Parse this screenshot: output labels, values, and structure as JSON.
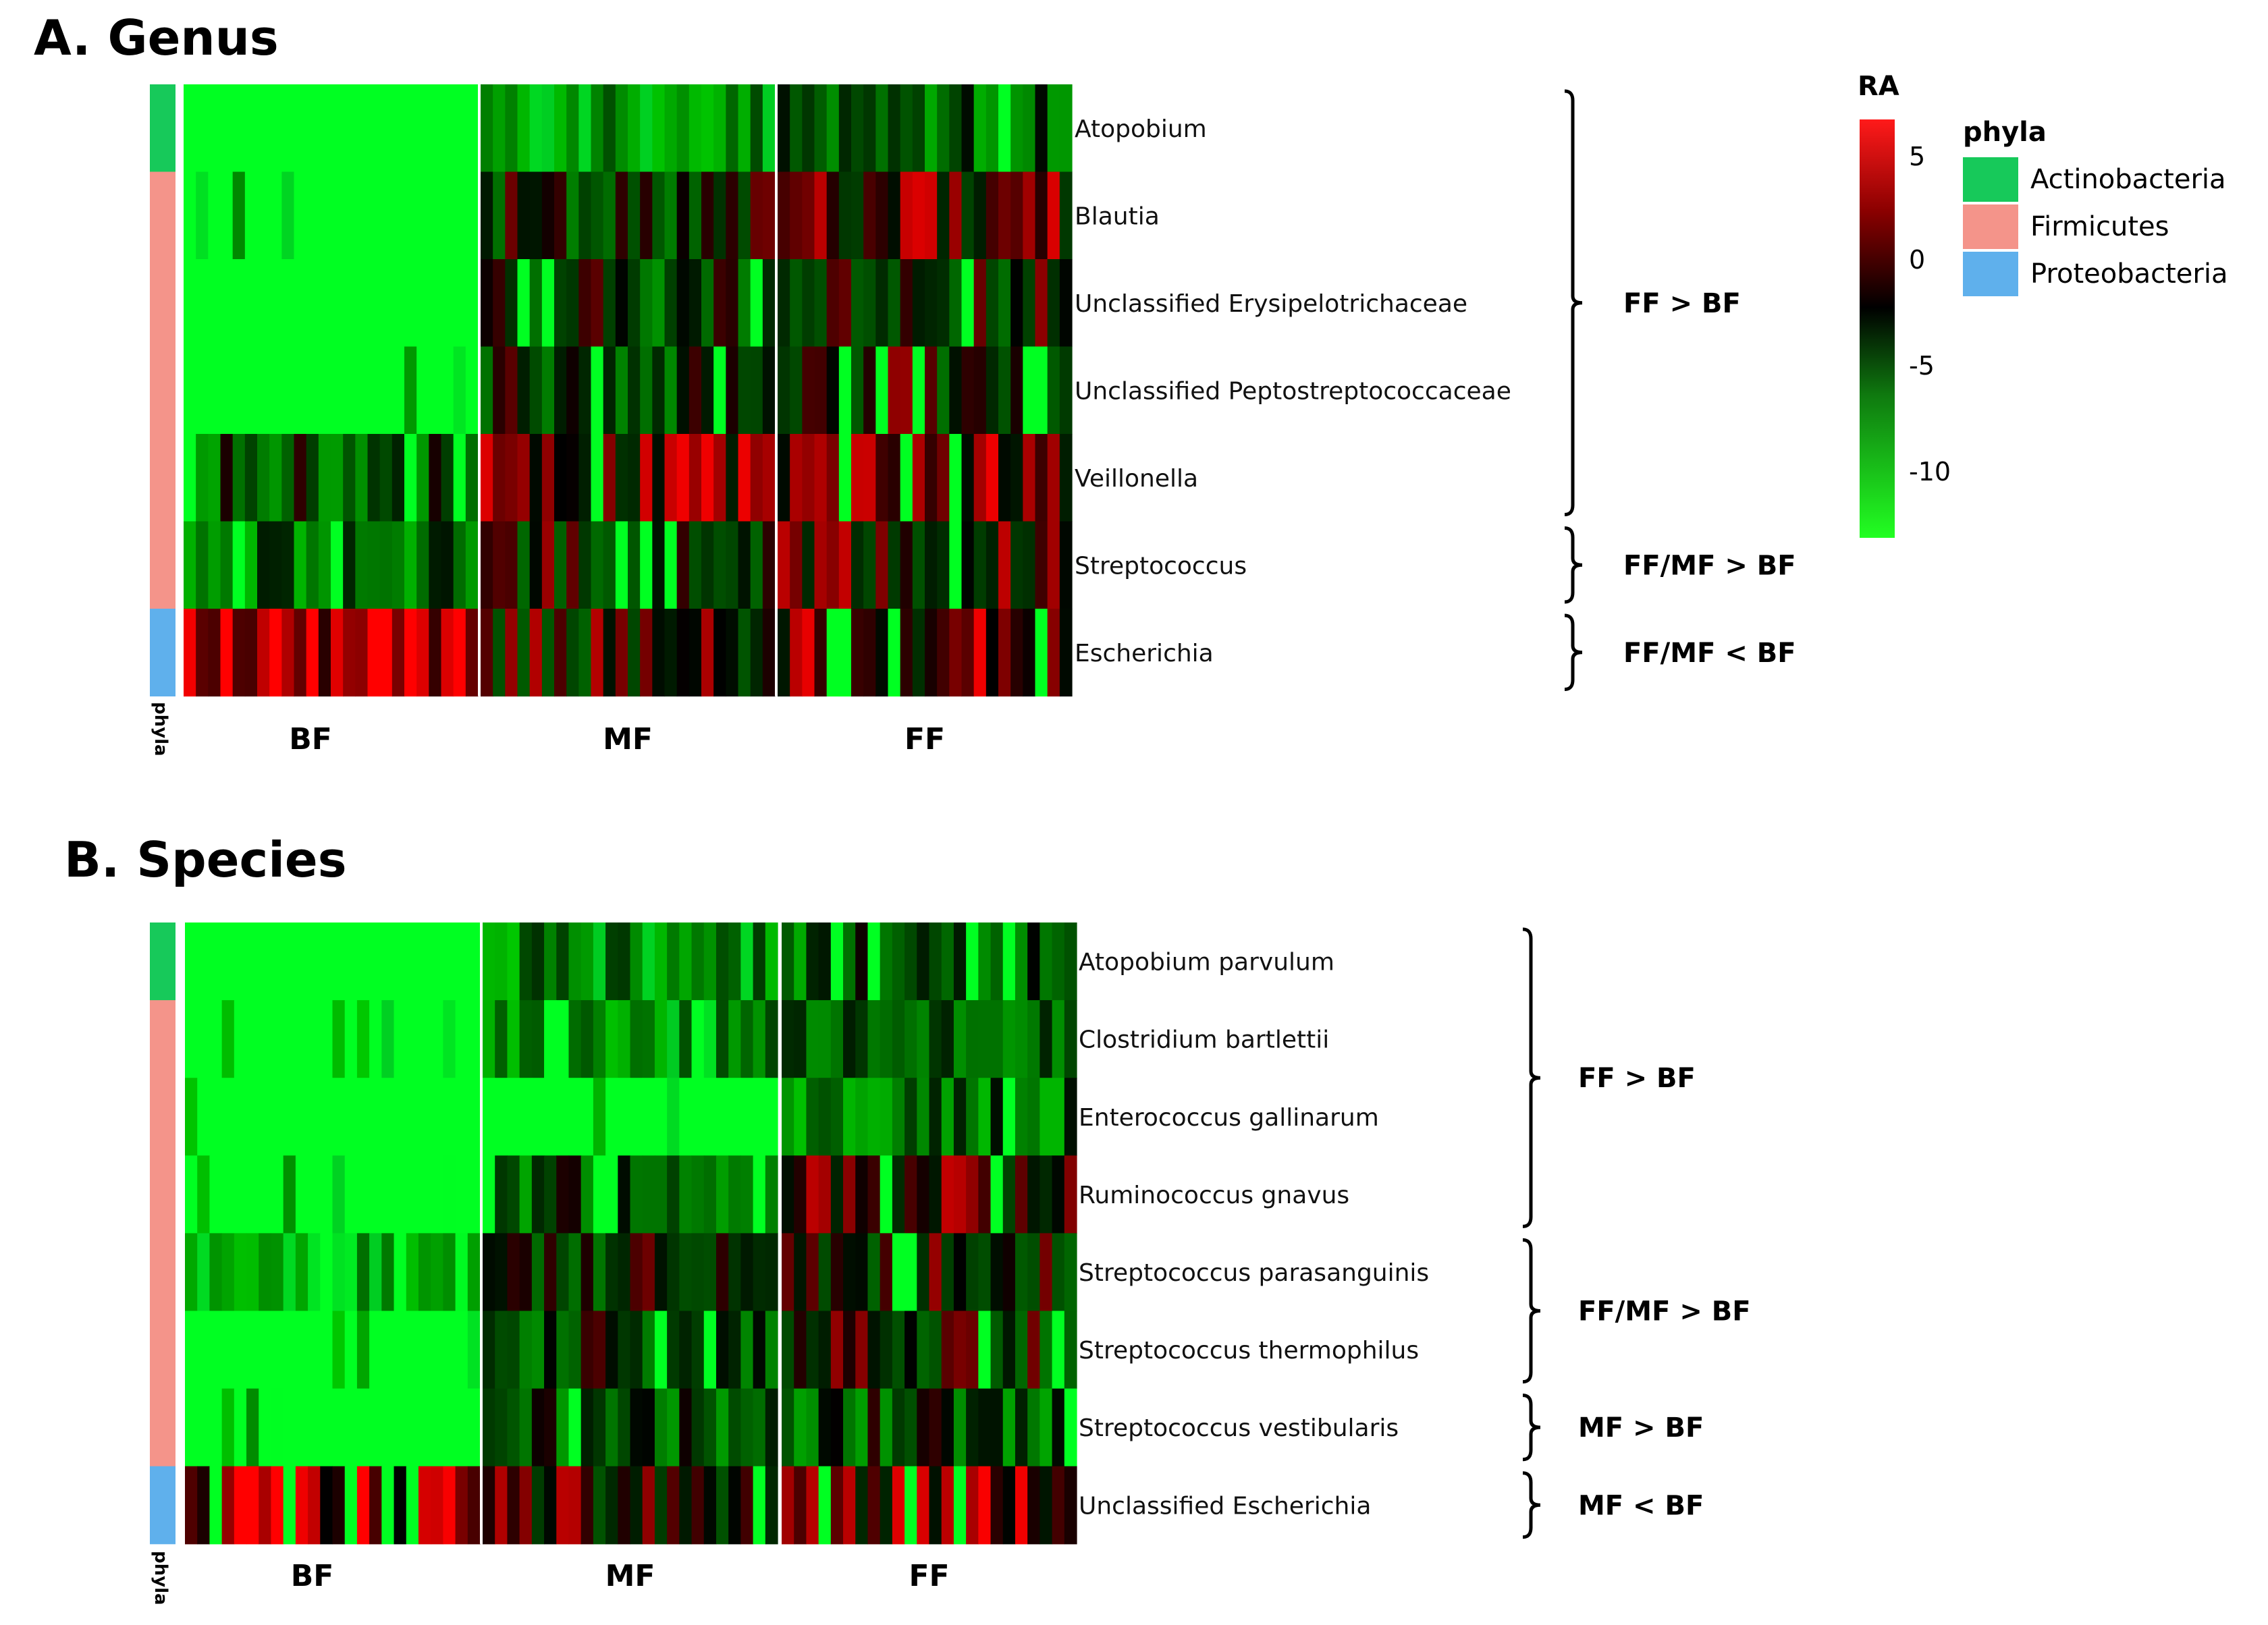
{
  "colors": {
    "actinobacteria": "#17c95a",
    "firmicutes": "#f4948a",
    "proteobacteria": "#5fb0ec",
    "scale_high": "#ff1a1a",
    "scale_mid": "#000000",
    "scale_low": "#22ff22"
  },
  "legend": {
    "ra_title": "RA",
    "ra_ticks": [
      "5",
      "0",
      "-5",
      "-10"
    ],
    "phyla_title": "phyla",
    "phyla": [
      {
        "name": "Actinobacteria",
        "color": "#17c95a"
      },
      {
        "name": "Firmicutes",
        "color": "#f4948a"
      },
      {
        "name": "Proteobacteria",
        "color": "#5fb0ec"
      }
    ]
  },
  "chart_data": [
    {
      "type": "heatmap",
      "title": "A. Genus",
      "phyla_axis_label": "phyla",
      "value_range": [
        -13,
        7
      ],
      "groups": [
        {
          "name": "BF",
          "columns": 24
        },
        {
          "name": "MF",
          "columns": 24
        },
        {
          "name": "FF",
          "columns": 24
        }
      ],
      "rows": [
        {
          "label": "Atopobium",
          "phylum": "Actinobacteria",
          "mean": [
            -12.0,
            -6.5,
            -4.5
          ]
        },
        {
          "label": "Blautia",
          "phylum": "Firmicutes",
          "mean": [
            -11.0,
            -1.5,
            1.5
          ]
        },
        {
          "label": "Unclassified Erysipelotrichaceae",
          "phylum": "Firmicutes",
          "mean": [
            -12.0,
            -2.5,
            -1.0
          ]
        },
        {
          "label": "Unclassified Peptostreptococcaceae",
          "phylum": "Firmicutes",
          "mean": [
            -11.5,
            -2.0,
            -1.0
          ]
        },
        {
          "label": "Veillonella",
          "phylum": "Firmicutes",
          "mean": [
            -3.5,
            2.0,
            2.0
          ]
        },
        {
          "label": "Streptococcus",
          "phylum": "Firmicutes",
          "mean": [
            -5.0,
            -0.5,
            0.5
          ]
        },
        {
          "label": "Escherichia",
          "phylum": "Proteobacteria",
          "mean": [
            4.5,
            0.0,
            2.5
          ]
        }
      ],
      "comparisons": [
        {
          "label": "FF > BF",
          "row_start": 0,
          "row_end": 4
        },
        {
          "label": "FF/MF > BF",
          "row_start": 5,
          "row_end": 5
        },
        {
          "label": "FF/MF < BF",
          "row_start": 6,
          "row_end": 6
        }
      ]
    },
    {
      "type": "heatmap",
      "title": "B. Species",
      "phyla_axis_label": "phyla",
      "value_range": [
        -13,
        7
      ],
      "groups": [
        {
          "name": "BF",
          "columns": 24
        },
        {
          "name": "MF",
          "columns": 24
        },
        {
          "name": "FF",
          "columns": 24
        }
      ],
      "rows": [
        {
          "label": "Atopobium parvulum",
          "phylum": "Actinobacteria",
          "mean": [
            -12.0,
            -6.5,
            -4.0
          ]
        },
        {
          "label": "Clostridium bartlettii",
          "phylum": "Firmicutes",
          "mean": [
            -12.0,
            -7.0,
            -4.5
          ]
        },
        {
          "label": "Enterococcus gallinarum",
          "phylum": "Firmicutes",
          "mean": [
            -12.5,
            -11.5,
            -5.0
          ]
        },
        {
          "label": "Ruminococcus gnavus",
          "phylum": "Firmicutes",
          "mean": [
            -11.0,
            -3.5,
            1.5
          ]
        },
        {
          "label": "Streptococcus parasanguinis",
          "phylum": "Firmicutes",
          "mean": [
            -9.5,
            -1.0,
            -0.5
          ]
        },
        {
          "label": "Streptococcus thermophilus",
          "phylum": "Firmicutes",
          "mean": [
            -12.0,
            -2.5,
            -1.0
          ]
        },
        {
          "label": "Streptococcus vestibularis",
          "phylum": "Firmicutes",
          "mean": [
            -11.0,
            -4.0,
            -3.5
          ]
        },
        {
          "label": "Unclassified Escherichia",
          "phylum": "Proteobacteria",
          "mean": [
            4.0,
            0.5,
            2.5
          ]
        }
      ],
      "comparisons": [
        {
          "label": "FF > BF",
          "row_start": 0,
          "row_end": 3
        },
        {
          "label": "FF/MF > BF",
          "row_start": 4,
          "row_end": 5
        },
        {
          "label": "MF > BF",
          "row_start": 6,
          "row_end": 6
        },
        {
          "label": "MF < BF",
          "row_start": 7,
          "row_end": 7
        }
      ]
    }
  ]
}
